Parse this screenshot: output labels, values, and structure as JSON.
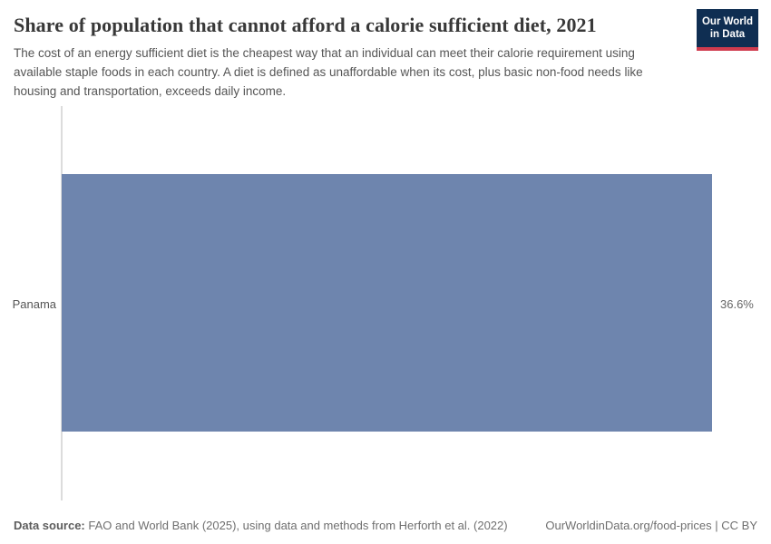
{
  "header": {
    "title": "Share of population that cannot afford a calorie sufficient diet, 2021",
    "subtitle": "The cost of an energy sufficient diet is the cheapest way that an individual can meet their calorie requirement using available staple foods in each country. A diet is defined as unaffordable when its cost, plus basic non-food needs like housing and transportation, exceeds daily income.",
    "logo": {
      "line1": "Our World",
      "line2": "in Data"
    }
  },
  "chart_data": {
    "type": "bar",
    "orientation": "horizontal",
    "title": "Share of population that cannot afford a calorie sufficient diet, 2021",
    "year": "2021",
    "categories": [
      "Panama"
    ],
    "values": [
      36.6
    ],
    "value_labels": [
      "36.6%"
    ],
    "xlabel": "",
    "ylabel": "",
    "xlim": [
      0,
      36.6
    ],
    "grid": false,
    "legend": "none",
    "bar_color": "#6e85ae"
  },
  "footer": {
    "datasource_label": "Data source:",
    "datasource_text": " FAO and World Bank (2025), using data and methods from Herforth et al. (2022)",
    "license_text": "OurWorldinData.org/food-prices | CC BY"
  },
  "colors": {
    "bar": "#6e85ae",
    "logo_navy": "#0f2e52",
    "logo_red": "#cf3b4e",
    "title_text": "#383838",
    "subtitle_text": "#555555",
    "axis_line": "#dcdcdc",
    "footer_text": "#6f6f6f"
  }
}
